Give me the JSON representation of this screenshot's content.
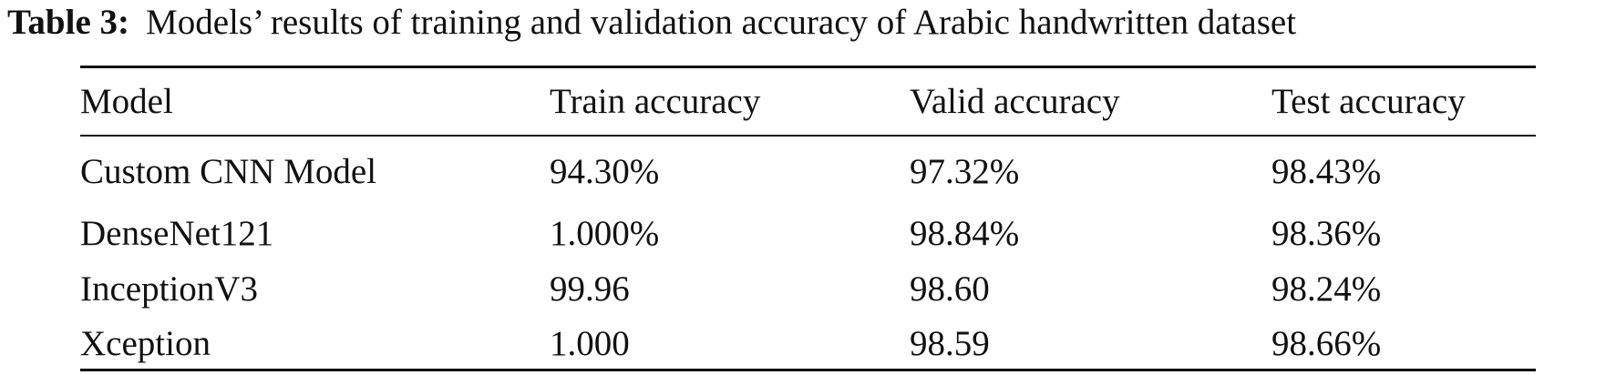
{
  "caption": {
    "label": "Table 3:",
    "text": "Models’ results of training and validation accuracy of Arabic handwritten dataset"
  },
  "table": {
    "headers": [
      "Model",
      "Train accuracy",
      "Valid accuracy",
      "Test accuracy"
    ],
    "rows": [
      [
        "Custom CNN Model",
        "94.30%",
        "97.32%",
        "98.43%"
      ],
      [
        "DenseNet121",
        "1.000%",
        "98.84%",
        "98.36%"
      ],
      [
        "InceptionV3",
        "99.96",
        "98.60",
        "98.24%"
      ],
      [
        "Xception",
        "1.000",
        "98.59",
        "98.66%"
      ]
    ]
  }
}
